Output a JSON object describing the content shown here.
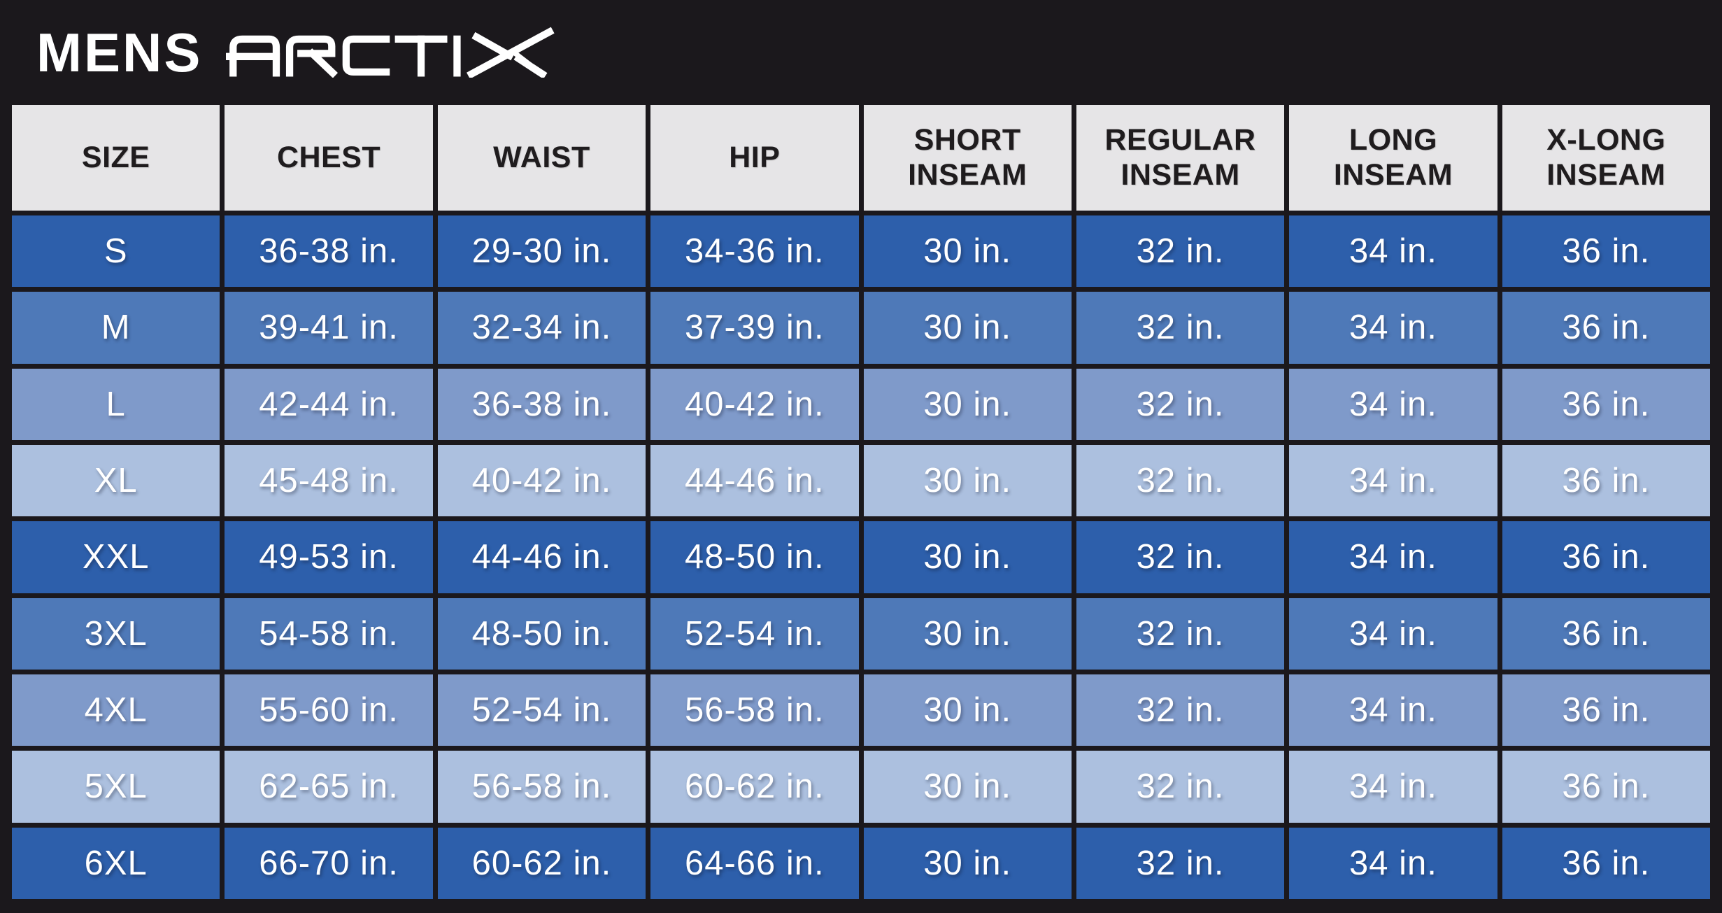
{
  "brand": {
    "category_label": "MENS",
    "logo_name": "ARCTIX"
  },
  "chart_data": {
    "type": "table",
    "title": "MENS ARCTIX size chart",
    "columns": [
      "SIZE",
      "CHEST",
      "WAIST",
      "HIP",
      "SHORT\nINSEAM",
      "REGULAR\nINSEAM",
      "LONG\nINSEAM",
      "X-LONG\nINSEAM"
    ],
    "rows": [
      [
        "S",
        "36-38 in.",
        "29-30 in.",
        "34-36 in.",
        "30 in.",
        "32 in.",
        "34 in.",
        "36 in."
      ],
      [
        "M",
        "39-41 in.",
        "32-34 in.",
        "37-39 in.",
        "30 in.",
        "32 in.",
        "34 in.",
        "36 in."
      ],
      [
        "L",
        "42-44 in.",
        "36-38 in.",
        "40-42 in.",
        "30 in.",
        "32 in.",
        "34 in.",
        "36 in."
      ],
      [
        "XL",
        "45-48 in.",
        "40-42 in.",
        "44-46 in.",
        "30 in.",
        "32 in.",
        "34 in.",
        "36 in."
      ],
      [
        "XXL",
        "49-53 in.",
        "44-46 in.",
        "48-50 in.",
        "30 in.",
        "32 in.",
        "34 in.",
        "36 in."
      ],
      [
        "3XL",
        "54-58 in.",
        "48-50 in.",
        "52-54 in.",
        "30 in.",
        "32 in.",
        "34 in.",
        "36 in."
      ],
      [
        "4XL",
        "55-60 in.",
        "52-54 in.",
        "56-58 in.",
        "30 in.",
        "32 in.",
        "34 in.",
        "36 in."
      ],
      [
        "5XL",
        "62-65 in.",
        "56-58 in.",
        "60-62 in.",
        "30 in.",
        "32 in.",
        "34 in.",
        "36 in."
      ],
      [
        "6XL",
        "66-70 in.",
        "60-62 in.",
        "64-66 in.",
        "30 in.",
        "32 in.",
        "34 in.",
        "36 in."
      ]
    ],
    "layout_hints": {
      "row_shade_cycle": [
        "dark",
        "medium",
        "light",
        "lightest"
      ],
      "grid": "black heavy gridlines",
      "header_row": "light gray"
    }
  },
  "colors": {
    "frame_black": "#1b181c",
    "header_bg": "#e6e5e7",
    "row_dark": "#2d5fab",
    "row_medium": "#4e79b8",
    "row_light": "#7f9aca",
    "row_lightest": "#acc0df",
    "text_light": "#ffffff",
    "text_dark": "#1f1c1e"
  }
}
